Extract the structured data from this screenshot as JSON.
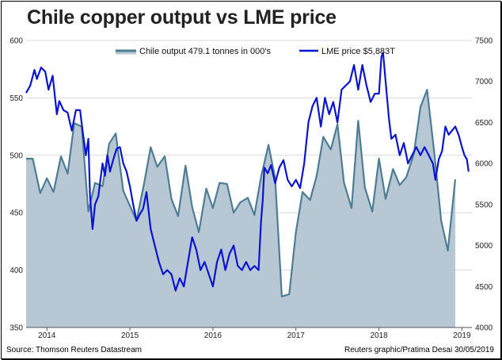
{
  "title": "Chile copper output vs LME price",
  "source": "Source: Thomson Reuters Datastream",
  "credit": "Reuters graphic/Pratima Desai 30/05/2019",
  "colors": {
    "area_fill": "#b7c8d4",
    "area_line": "#4d7d94",
    "price_line": "#0a14d0",
    "grid": "#d9d9d9"
  },
  "chart_data": {
    "type": "line",
    "title": "Chile copper output vs LME price",
    "xlim": [
      2013.75,
      2019.12
    ],
    "x_ticks": [
      {
        "label": "2014",
        "x": 2014.0
      },
      {
        "label": "2015",
        "x": 2015.0
      },
      {
        "label": "2016",
        "x": 2016.0
      },
      {
        "label": "2017",
        "x": 2017.0
      },
      {
        "label": "2018",
        "x": 2018.0
      },
      {
        "label": "2019",
        "x": 2019.0
      }
    ],
    "y_left": {
      "lim": [
        350,
        600
      ],
      "ticks": [
        "350",
        "400",
        "450",
        "500",
        "550",
        "600"
      ]
    },
    "y_right": {
      "lim": [
        4000,
        7500
      ],
      "ticks": [
        "4000",
        "4500",
        "5000",
        "5500",
        "6000",
        "6500",
        "7000",
        "7500"
      ]
    },
    "legend": [
      {
        "name": "Chile output 479.1 tonnes in 000's",
        "kind": "area"
      },
      {
        "name": "LME price $5,883T",
        "kind": "line"
      }
    ],
    "series": [
      {
        "name": "Chile output 479.1 tonnes in 000's",
        "axis": "left",
        "type": "area",
        "points": [
          [
            2013.75,
            497
          ],
          [
            2013.83,
            497
          ],
          [
            2013.92,
            467
          ],
          [
            2014.0,
            480
          ],
          [
            2014.08,
            468
          ],
          [
            2014.17,
            499
          ],
          [
            2014.25,
            484
          ],
          [
            2014.33,
            528
          ],
          [
            2014.42,
            525
          ],
          [
            2014.5,
            451
          ],
          [
            2014.58,
            476
          ],
          [
            2014.67,
            473
          ],
          [
            2014.75,
            510
          ],
          [
            2014.83,
            519
          ],
          [
            2014.92,
            469
          ],
          [
            2015.0,
            456
          ],
          [
            2015.08,
            443
          ],
          [
            2015.17,
            475
          ],
          [
            2015.25,
            507
          ],
          [
            2015.33,
            490
          ],
          [
            2015.42,
            499
          ],
          [
            2015.5,
            462
          ],
          [
            2015.58,
            447
          ],
          [
            2015.67,
            491
          ],
          [
            2015.75,
            455
          ],
          [
            2015.83,
            433
          ],
          [
            2015.92,
            471
          ],
          [
            2016.0,
            454
          ],
          [
            2016.08,
            476
          ],
          [
            2016.17,
            475
          ],
          [
            2016.25,
            450
          ],
          [
            2016.33,
            459
          ],
          [
            2016.42,
            463
          ],
          [
            2016.5,
            448
          ],
          [
            2016.58,
            481
          ],
          [
            2016.67,
            509
          ],
          [
            2016.75,
            480
          ],
          [
            2016.83,
            377
          ],
          [
            2016.92,
            379
          ],
          [
            2017.0,
            433
          ],
          [
            2017.08,
            468
          ],
          [
            2017.17,
            461
          ],
          [
            2017.25,
            482
          ],
          [
            2017.33,
            516
          ],
          [
            2017.42,
            505
          ],
          [
            2017.5,
            527
          ],
          [
            2017.58,
            476
          ],
          [
            2017.67,
            454
          ],
          [
            2017.75,
            530
          ],
          [
            2017.83,
            472
          ],
          [
            2017.92,
            451
          ],
          [
            2018.0,
            497
          ],
          [
            2018.08,
            462
          ],
          [
            2018.17,
            488
          ],
          [
            2018.25,
            474
          ],
          [
            2018.33,
            481
          ],
          [
            2018.42,
            501
          ],
          [
            2018.5,
            542
          ],
          [
            2018.58,
            557
          ],
          [
            2018.67,
            500
          ],
          [
            2018.75,
            443
          ],
          [
            2018.83,
            417
          ],
          [
            2018.92,
            479
          ]
        ]
      },
      {
        "name": "LME price $5,883T",
        "axis": "right",
        "type": "line",
        "points": [
          [
            2013.75,
            6860
          ],
          [
            2013.8,
            6950
          ],
          [
            2013.85,
            7140
          ],
          [
            2013.88,
            7030
          ],
          [
            2013.93,
            7170
          ],
          [
            2013.98,
            7120
          ],
          [
            2014.02,
            6900
          ],
          [
            2014.07,
            7070
          ],
          [
            2014.12,
            6600
          ],
          [
            2014.15,
            6760
          ],
          [
            2014.2,
            6650
          ],
          [
            2014.25,
            6620
          ],
          [
            2014.3,
            6400
          ],
          [
            2014.35,
            6650
          ],
          [
            2014.4,
            6650
          ],
          [
            2014.43,
            6400
          ],
          [
            2014.47,
            6100
          ],
          [
            2014.5,
            6300
          ],
          [
            2014.52,
            5600
          ],
          [
            2014.55,
            5200
          ],
          [
            2014.58,
            5500
          ],
          [
            2014.62,
            5600
          ],
          [
            2014.67,
            6000
          ],
          [
            2014.7,
            5850
          ],
          [
            2014.73,
            6100
          ],
          [
            2014.76,
            5900
          ],
          [
            2014.8,
            6050
          ],
          [
            2014.84,
            6180
          ],
          [
            2014.88,
            6200
          ],
          [
            2014.92,
            6000
          ],
          [
            2014.96,
            5900
          ],
          [
            2015.0,
            5720
          ],
          [
            2015.04,
            5500
          ],
          [
            2015.08,
            5300
          ],
          [
            2015.12,
            5380
          ],
          [
            2015.16,
            5450
          ],
          [
            2015.2,
            5650
          ],
          [
            2015.25,
            5200
          ],
          [
            2015.3,
            5000
          ],
          [
            2015.35,
            4800
          ],
          [
            2015.4,
            4650
          ],
          [
            2015.45,
            4700
          ],
          [
            2015.5,
            4650
          ],
          [
            2015.55,
            4450
          ],
          [
            2015.6,
            4600
          ],
          [
            2015.65,
            4500
          ],
          [
            2015.7,
            4800
          ],
          [
            2015.75,
            5100
          ],
          [
            2015.8,
            4950
          ],
          [
            2015.85,
            4700
          ],
          [
            2015.9,
            4800
          ],
          [
            2015.95,
            4650
          ],
          [
            2016.0,
            4500
          ],
          [
            2016.05,
            4800
          ],
          [
            2016.1,
            4950
          ],
          [
            2016.15,
            4700
          ],
          [
            2016.2,
            4900
          ],
          [
            2016.25,
            5000
          ],
          [
            2016.3,
            4750
          ],
          [
            2016.35,
            4700
          ],
          [
            2016.4,
            4800
          ],
          [
            2016.45,
            4700
          ],
          [
            2016.5,
            4750
          ],
          [
            2016.55,
            4700
          ],
          [
            2016.58,
            5300
          ],
          [
            2016.6,
            5550
          ],
          [
            2016.62,
            5950
          ],
          [
            2016.66,
            5880
          ],
          [
            2016.7,
            5980
          ],
          [
            2016.75,
            5760
          ],
          [
            2016.8,
            5950
          ],
          [
            2016.85,
            6040
          ],
          [
            2016.9,
            5800
          ],
          [
            2016.95,
            5720
          ],
          [
            2017.0,
            5800
          ],
          [
            2017.05,
            5700
          ],
          [
            2017.1,
            6000
          ],
          [
            2017.15,
            6500
          ],
          [
            2017.2,
            6700
          ],
          [
            2017.25,
            6800
          ],
          [
            2017.3,
            6450
          ],
          [
            2017.35,
            6800
          ],
          [
            2017.4,
            6600
          ],
          [
            2017.45,
            6750
          ],
          [
            2017.5,
            6500
          ],
          [
            2017.55,
            6900
          ],
          [
            2017.6,
            6950
          ],
          [
            2017.65,
            7000
          ],
          [
            2017.7,
            7200
          ],
          [
            2017.75,
            6900
          ],
          [
            2017.8,
            7200
          ],
          [
            2017.85,
            6950
          ],
          [
            2017.9,
            6750
          ],
          [
            2017.95,
            6850
          ],
          [
            2018.0,
            6850
          ],
          [
            2018.03,
            7300
          ],
          [
            2018.05,
            7350
          ],
          [
            2018.08,
            7000
          ],
          [
            2018.12,
            6550
          ],
          [
            2018.15,
            6300
          ],
          [
            2018.2,
            6350
          ],
          [
            2018.25,
            6100
          ],
          [
            2018.3,
            6250
          ],
          [
            2018.35,
            6000
          ],
          [
            2018.4,
            6100
          ],
          [
            2018.45,
            6200
          ],
          [
            2018.5,
            6100
          ],
          [
            2018.55,
            6200
          ],
          [
            2018.6,
            6100
          ],
          [
            2018.65,
            6000
          ],
          [
            2018.68,
            5800
          ],
          [
            2018.72,
            6050
          ],
          [
            2018.76,
            6150
          ],
          [
            2018.8,
            6450
          ],
          [
            2018.84,
            6350
          ],
          [
            2018.88,
            6400
          ],
          [
            2018.92,
            6450
          ],
          [
            2018.96,
            6350
          ],
          [
            2019.0,
            6200
          ],
          [
            2019.03,
            6100
          ],
          [
            2019.06,
            6050
          ],
          [
            2019.08,
            5900
          ]
        ]
      }
    ]
  }
}
